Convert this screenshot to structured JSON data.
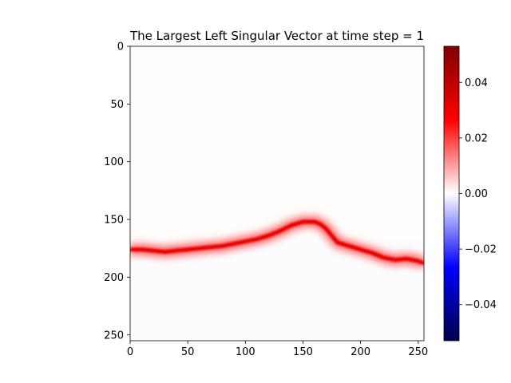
{
  "chart_data": {
    "type": "heatmap",
    "title": "The Largest Left Singular Vector at time step = 1",
    "xlabel": "",
    "ylabel": "",
    "xlim": [
      0,
      255
    ],
    "ylim": [
      255,
      0
    ],
    "x_ticks": [
      0,
      50,
      100,
      150,
      200,
      250
    ],
    "y_ticks": [
      0,
      50,
      100,
      150,
      200,
      250
    ],
    "colormap": "seismic",
    "colorbar": {
      "vmin": -0.053,
      "vmax": 0.053,
      "ticks": [
        -0.04,
        -0.02,
        0.0,
        0.02,
        0.04
      ],
      "tick_labels": [
        "−0.04",
        "−0.02",
        "0.00",
        "0.02",
        "0.04"
      ],
      "colors": [
        "#00004c",
        "#0000ff",
        "#ffffff",
        "#ff0000",
        "#7f0000"
      ]
    },
    "ridge": {
      "description_values": "approximate row index of peak intensity per column",
      "x": [
        0,
        10,
        20,
        30,
        40,
        50,
        60,
        70,
        80,
        90,
        100,
        110,
        120,
        130,
        140,
        150,
        160,
        165,
        170,
        175,
        180,
        190,
        200,
        210,
        220,
        230,
        240,
        250,
        255
      ],
      "y": [
        176,
        176,
        177,
        178,
        177,
        176,
        175,
        174,
        173,
        171,
        169,
        167,
        164,
        160,
        155,
        152,
        152,
        154,
        158,
        164,
        170,
        173,
        176,
        179,
        183,
        185,
        184,
        186,
        188
      ],
      "peak_value": 0.03
    }
  }
}
